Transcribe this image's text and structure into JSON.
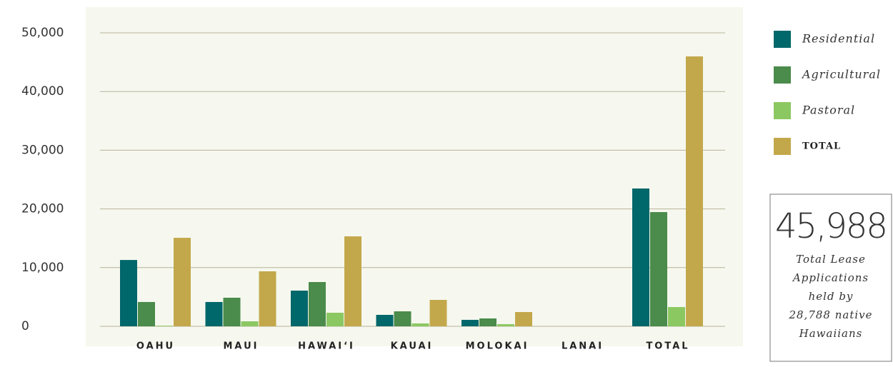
{
  "chart_data": {
    "type": "bar",
    "categories": [
      "OAHU",
      "MAUI",
      "HAWAI‘I",
      "KAUAI",
      "MOLOKAI",
      "LANAI",
      "TOTAL"
    ],
    "series": [
      {
        "name": "Residential",
        "color": "#00676a",
        "values": [
          11300,
          4140,
          6080,
          1950,
          1100,
          0,
          23480
        ]
      },
      {
        "name": "Agricultural",
        "color": "#4b8b4b",
        "values": [
          4140,
          4870,
          7540,
          2550,
          1340,
          0,
          19460
        ]
      },
      {
        "name": "Pastoral",
        "color": "#8cc862",
        "values": [
          100,
          850,
          2310,
          490,
          370,
          0,
          3280
        ]
      },
      {
        "name": "TOTAL",
        "color": "#c3a84b",
        "values": [
          15080,
          9370,
          15330,
          4500,
          2430,
          0,
          45988
        ]
      }
    ],
    "ylim": [
      0,
      50000
    ],
    "yticks": [
      0,
      {
        "value": 10000,
        "label": "10,000"
      },
      {
        "value": 20000,
        "label": "20,000"
      },
      {
        "value": 30000,
        "label": "30,000"
      },
      {
        "value": 40000,
        "label": "40,000"
      },
      {
        "value": 50000,
        "label": "50,000"
      }
    ],
    "grid": true,
    "legend": "right",
    "annotation": {
      "headline": "45,988",
      "lines": [
        "Total Lease",
        "Applications",
        "held by",
        "28,788 native",
        "Hawaiians"
      ]
    }
  }
}
